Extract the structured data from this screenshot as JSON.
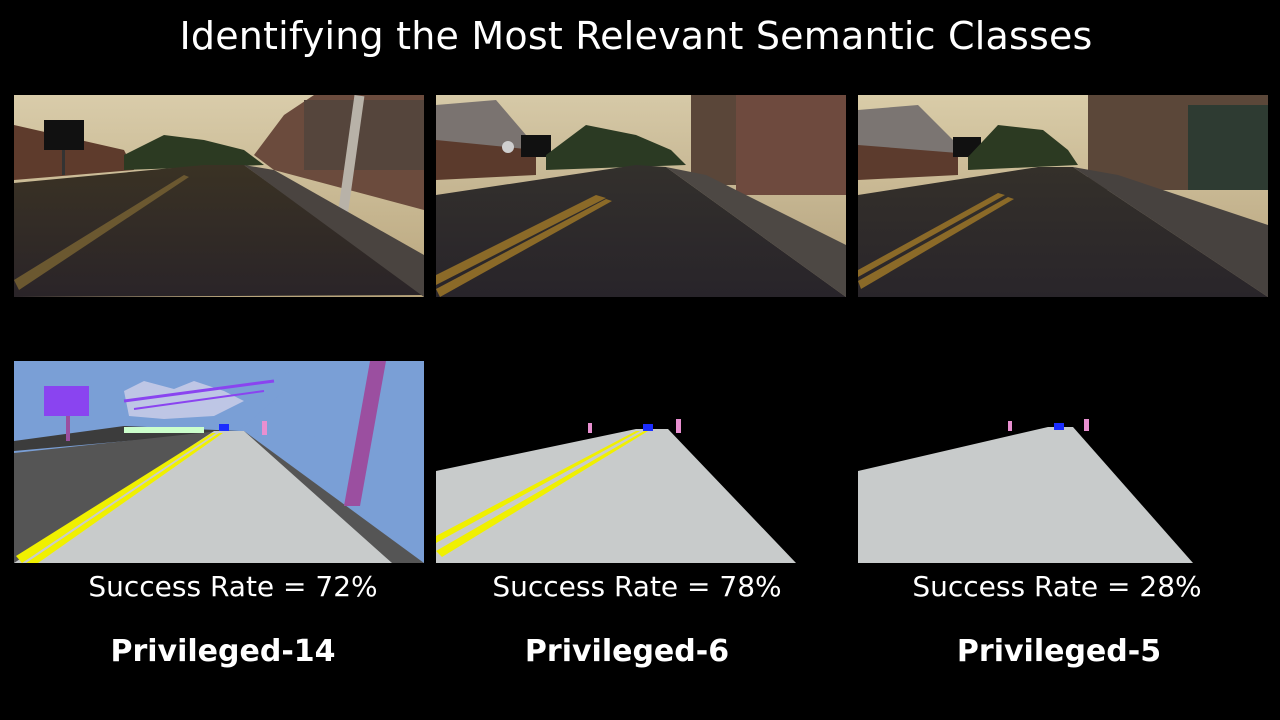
{
  "title": "Identifying the Most Relevant Semantic Classes",
  "columns": [
    {
      "success_rate": "Success Rate = 72%",
      "name": "Privileged-14"
    },
    {
      "success_rate": "Success Rate = 78%",
      "name": "Privileged-6"
    },
    {
      "success_rate": "Success Rate = 28%",
      "name": "Privileged-5"
    }
  ],
  "colors": {
    "background": "#000000",
    "sky_class": "#7a9fd6",
    "road_class": "#c8cbcb",
    "lane_marking_class": "#f0f000",
    "sidewalk_class": "#555555",
    "pole_class": "#9b4fa0",
    "sign_class": "#8a44f0",
    "vehicle_class": "#1a2cff",
    "pedestrian_class": "#e88fd0"
  }
}
